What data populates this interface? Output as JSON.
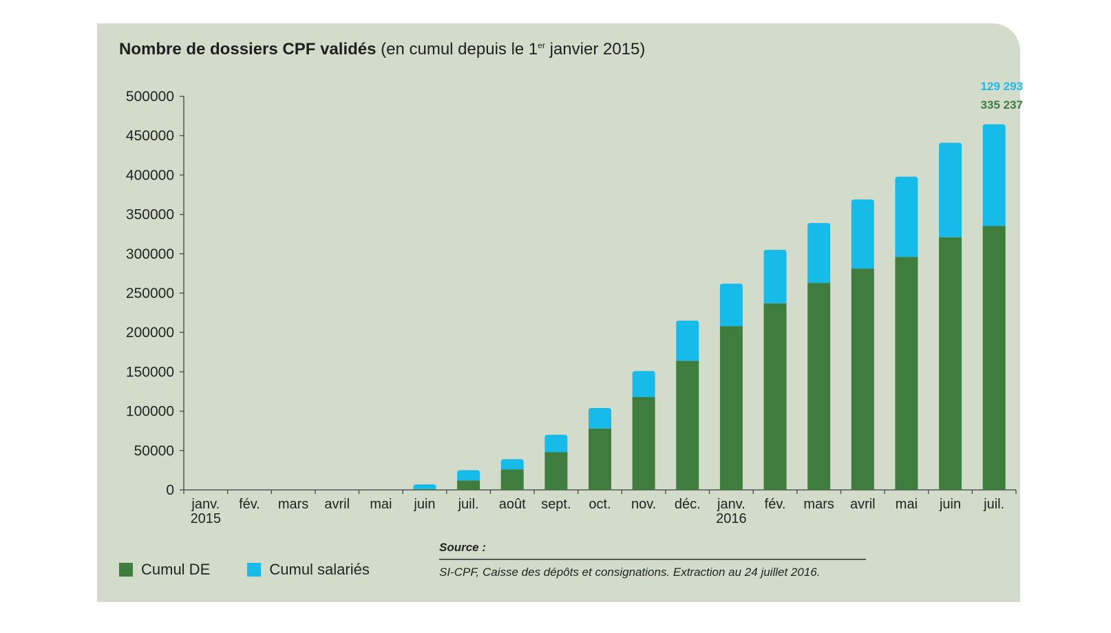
{
  "title": {
    "bold": "Nombre de dossiers CPF validés",
    "rest_prefix": "(en cumul depuis le 1",
    "rest_sup": "er",
    "rest_suffix": " janvier 2015)"
  },
  "chart_data": {
    "type": "bar",
    "stacked": true,
    "title": "Nombre de dossiers CPF validés (en cumul depuis le 1er janvier 2015)",
    "categories": [
      "janv.\n2015",
      "fév.",
      "mars",
      "avril",
      "mai",
      "juin",
      "juil.",
      "août",
      "sept.",
      "oct.",
      "nov.",
      "déc.",
      "janv.\n2016",
      "fév.",
      "mars",
      "avril",
      "mai",
      "juin",
      "juil."
    ],
    "series": [
      {
        "name": "Cumul DE",
        "color": "#3f7d3e",
        "values": [
          0,
          0,
          0,
          0,
          0,
          1000,
          12000,
          26000,
          48000,
          78000,
          118000,
          164000,
          208000,
          237000,
          263000,
          281000,
          296000,
          321000,
          335237
        ]
      },
      {
        "name": "Cumul salariés",
        "color": "#17bbea",
        "values": [
          0,
          0,
          0,
          0,
          0,
          6000,
          13000,
          13000,
          22000,
          26000,
          33000,
          51000,
          54000,
          68000,
          76000,
          88000,
          102000,
          120000,
          129293
        ]
      }
    ],
    "end_labels": [
      {
        "text": "129 293",
        "color": "#17bbea"
      },
      {
        "text": "335 237",
        "color": "#3f7d3e"
      }
    ],
    "yticks": [
      "0",
      "50000",
      "100000",
      "150000",
      "200000",
      "250000",
      "300000",
      "350000",
      "400000",
      "450000",
      "500000"
    ],
    "ylim": [
      0,
      500000
    ],
    "xlabel": "",
    "ylabel": "",
    "grid": false,
    "legend_position": "bottom-left"
  },
  "legend": {
    "de_label": "Cumul DE",
    "salaries_label": "Cumul salariés"
  },
  "source": {
    "title": "Source :",
    "text": "SI-CPF, Caisse des dépôts et consignations. Extraction au 24 juillet 2016."
  }
}
